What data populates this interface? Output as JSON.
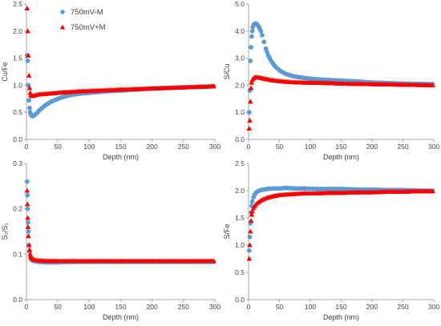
{
  "series_styles": {
    "minus": {
      "color": "#5B9BD5",
      "marker": "circle"
    },
    "plus": {
      "color": "#FF0000",
      "marker": "triangle"
    }
  },
  "chart_data": [
    {
      "type": "scatter",
      "xlabel": "Depth (nm)",
      "ylabel": "Cu/Fe",
      "xlim": [
        0,
        300
      ],
      "ylim": [
        0,
        2.5
      ],
      "xticks": [
        "0",
        "50",
        "100",
        "150",
        "200",
        "250",
        "300"
      ],
      "yticks": [
        "0.0",
        "0.5",
        "1.0",
        "1.5",
        "2.0",
        "2.5"
      ],
      "legend": {
        "position": "top-left",
        "entries": [
          "750mV-M",
          "750mV+M"
        ]
      },
      "series": [
        {
          "name": "750mV-M",
          "key": "minus",
          "x": [
            1,
            2,
            3,
            4,
            5,
            6,
            7,
            8,
            9,
            10,
            12,
            14,
            17,
            20,
            25,
            30,
            40,
            50,
            60,
            75,
            90,
            110,
            130,
            150,
            175,
            200,
            225,
            250,
            275,
            298
          ],
          "y": [
            1.55,
            1.45,
            1.0,
            0.72,
            0.58,
            0.5,
            0.46,
            0.44,
            0.43,
            0.43,
            0.44,
            0.46,
            0.49,
            0.53,
            0.58,
            0.63,
            0.7,
            0.75,
            0.79,
            0.83,
            0.85,
            0.87,
            0.89,
            0.9,
            0.92,
            0.94,
            0.95,
            0.96,
            0.97,
            0.98
          ]
        },
        {
          "name": "750mV+M",
          "key": "plus",
          "x": [
            1,
            2,
            3,
            4,
            5,
            6,
            7,
            8,
            9,
            10,
            12,
            15,
            20,
            30,
            40,
            50,
            60,
            75,
            90,
            110,
            130,
            150,
            175,
            200,
            225,
            250,
            275,
            298
          ],
          "y": [
            2.42,
            2.0,
            1.55,
            1.18,
            0.95,
            0.86,
            0.82,
            0.81,
            0.8,
            0.8,
            0.81,
            0.82,
            0.83,
            0.84,
            0.85,
            0.86,
            0.87,
            0.88,
            0.89,
            0.9,
            0.91,
            0.92,
            0.93,
            0.94,
            0.95,
            0.96,
            0.97,
            0.98
          ]
        }
      ]
    },
    {
      "type": "scatter",
      "xlabel": "Depth (nm)",
      "ylabel": "S/Cu",
      "xlim": [
        0,
        300
      ],
      "ylim": [
        0,
        5
      ],
      "xticks": [
        "0",
        "50",
        "100",
        "150",
        "200",
        "250",
        "300"
      ],
      "yticks": [
        "0.0",
        "1.0",
        "2.0",
        "3.0",
        "4.0",
        "5.0"
      ],
      "series": [
        {
          "name": "750mV-M",
          "key": "minus",
          "x": [
            1,
            2,
            3,
            4,
            5,
            6,
            7,
            8,
            10,
            12,
            14,
            16,
            18,
            20,
            22,
            25,
            28,
            32,
            36,
            40,
            45,
            50,
            55,
            60,
            70,
            80,
            100,
            125,
            150,
            175,
            200,
            225,
            250,
            275,
            298
          ],
          "y": [
            1.0,
            1.8,
            2.9,
            3.4,
            3.8,
            4.0,
            4.15,
            4.22,
            4.27,
            4.28,
            4.25,
            4.18,
            4.1,
            4.0,
            3.85,
            3.6,
            3.35,
            3.1,
            2.92,
            2.78,
            2.65,
            2.55,
            2.48,
            2.42,
            2.35,
            2.3,
            2.24,
            2.2,
            2.17,
            2.14,
            2.1,
            2.08,
            2.06,
            2.05,
            2.04
          ]
        },
        {
          "name": "750mV+M",
          "key": "plus",
          "x": [
            1,
            2,
            3,
            4,
            5,
            6,
            8,
            10,
            12,
            15,
            20,
            30,
            40,
            50,
            60,
            75,
            90,
            110,
            130,
            150,
            175,
            200,
            225,
            250,
            275,
            298
          ],
          "y": [
            0.4,
            0.7,
            1.4,
            1.9,
            2.1,
            2.2,
            2.25,
            2.28,
            2.3,
            2.3,
            2.27,
            2.22,
            2.18,
            2.15,
            2.13,
            2.11,
            2.1,
            2.09,
            2.08,
            2.06,
            2.05,
            2.04,
            2.03,
            2.02,
            2.01,
            2.0
          ]
        }
      ]
    },
    {
      "type": "scatter",
      "xlabel": "Depth (nm)",
      "ylabel": "S₂/S₁",
      "xlim": [
        0,
        300
      ],
      "ylim": [
        0,
        0.3
      ],
      "xticks": [
        "0",
        "50",
        "100",
        "150",
        "200",
        "250",
        "300"
      ],
      "yticks": [
        "0.0",
        "0.1",
        "0.2",
        "0.3"
      ],
      "series": [
        {
          "name": "750mV-M",
          "key": "minus",
          "x": [
            1,
            1.5,
            2,
            2.5,
            3,
            4,
            5,
            6,
            7,
            8,
            10,
            12,
            15,
            20,
            30,
            40,
            50,
            75,
            100,
            150,
            200,
            250,
            298
          ],
          "y": [
            0.26,
            0.23,
            0.2,
            0.17,
            0.15,
            0.12,
            0.105,
            0.095,
            0.09,
            0.088,
            0.086,
            0.085,
            0.084,
            0.083,
            0.082,
            0.082,
            0.082,
            0.083,
            0.083,
            0.083,
            0.083,
            0.083,
            0.083
          ]
        },
        {
          "name": "750mV+M",
          "key": "plus",
          "x": [
            1,
            1.5,
            2,
            2.5,
            3,
            4,
            5,
            6,
            7,
            8,
            10,
            12,
            15,
            20,
            30,
            40,
            50,
            75,
            100,
            150,
            200,
            250,
            298
          ],
          "y": [
            0.24,
            0.21,
            0.18,
            0.16,
            0.14,
            0.12,
            0.11,
            0.1,
            0.095,
            0.092,
            0.09,
            0.088,
            0.087,
            0.086,
            0.085,
            0.085,
            0.085,
            0.085,
            0.085,
            0.085,
            0.085,
            0.085,
            0.085
          ]
        }
      ]
    },
    {
      "type": "scatter",
      "xlabel": "Depth (nm)",
      "ylabel": "S/Fe",
      "xlim": [
        0,
        300
      ],
      "ylim": [
        0,
        2.5
      ],
      "xticks": [
        "0",
        "50",
        "100",
        "150",
        "200",
        "250",
        "300"
      ],
      "yticks": [
        "0.0",
        "0.5",
        "1.0",
        "1.5",
        "2.0",
        "2.5"
      ],
      "series": [
        {
          "name": "750mV-M",
          "key": "minus",
          "x": [
            1,
            2,
            3,
            4,
            5,
            6,
            8,
            10,
            12,
            15,
            20,
            25,
            30,
            40,
            50,
            60,
            75,
            90,
            110,
            130,
            150,
            175,
            200,
            225,
            250,
            275,
            298
          ],
          "y": [
            0.9,
            1.15,
            1.4,
            1.6,
            1.72,
            1.8,
            1.88,
            1.93,
            1.96,
            1.99,
            2.01,
            2.02,
            2.03,
            2.04,
            2.04,
            2.05,
            2.04,
            2.04,
            2.03,
            2.03,
            2.03,
            2.02,
            2.02,
            2.01,
            2.01,
            2.0,
            2.0
          ]
        },
        {
          "name": "750mV+M",
          "key": "plus",
          "x": [
            1,
            2,
            3,
            4,
            5,
            6,
            8,
            10,
            12,
            15,
            20,
            25,
            30,
            40,
            50,
            60,
            75,
            90,
            110,
            130,
            150,
            175,
            200,
            225,
            250,
            275,
            298
          ],
          "y": [
            0.75,
            1.0,
            1.25,
            1.45,
            1.56,
            1.62,
            1.68,
            1.72,
            1.75,
            1.78,
            1.82,
            1.85,
            1.87,
            1.9,
            1.92,
            1.93,
            1.94,
            1.95,
            1.95,
            1.96,
            1.96,
            1.97,
            1.97,
            1.98,
            1.98,
            1.99,
            1.99
          ]
        }
      ]
    }
  ]
}
